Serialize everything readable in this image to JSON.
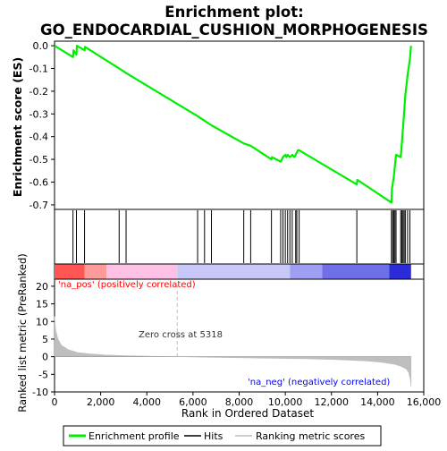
{
  "chart_data": {
    "type": "line",
    "title_line1": "Enrichment plot:",
    "title_line2": "GO_ENDOCARDIAL_CUSHION_MORPHOGENESIS",
    "es_panel": {
      "ylabel": "Enrichment score (ES)",
      "ylim": [
        -0.72,
        0.02
      ],
      "yticks": [
        "0.0",
        "-0.1",
        "-0.2",
        "-0.3",
        "-0.4",
        "-0.5",
        "-0.6",
        "-0.7"
      ],
      "ytick_values": [
        0.0,
        -0.1,
        -0.2,
        -0.3,
        -0.4,
        -0.5,
        -0.6,
        -0.7
      ],
      "series_name": "Enrichment profile",
      "x": [
        0,
        800,
        820,
        950,
        970,
        1300,
        1320,
        2800,
        3100,
        6200,
        6500,
        6800,
        8200,
        8500,
        9400,
        9420,
        9800,
        9850,
        9900,
        10000,
        10050,
        10100,
        10200,
        10300,
        10400,
        10450,
        10500,
        10550,
        10600,
        13100,
        13120,
        14600,
        14620,
        14700,
        14750,
        14800,
        15000,
        15050,
        15100,
        15150,
        15200,
        15300,
        15400,
        15450
      ],
      "y": [
        0.0,
        -0.05,
        -0.02,
        -0.04,
        0.0,
        -0.02,
        -0.005,
        -0.1,
        -0.12,
        -0.31,
        -0.33,
        -0.35,
        -0.43,
        -0.44,
        -0.5,
        -0.49,
        -0.51,
        -0.5,
        -0.49,
        -0.48,
        -0.49,
        -0.48,
        -0.49,
        -0.48,
        -0.49,
        -0.48,
        -0.47,
        -0.46,
        -0.46,
        -0.61,
        -0.59,
        -0.69,
        -0.63,
        -0.58,
        -0.53,
        -0.48,
        -0.49,
        -0.43,
        -0.36,
        -0.29,
        -0.22,
        -0.13,
        -0.06,
        0.0
      ]
    },
    "hits": [
      800,
      950,
      1300,
      2800,
      3100,
      6200,
      6500,
      6800,
      8200,
      8500,
      9400,
      9800,
      9900,
      10000,
      10100,
      10200,
      10300,
      10450,
      10500,
      10600,
      13100,
      14600,
      14650,
      14700,
      14750,
      14800,
      15000,
      15050,
      15100,
      15150,
      15200,
      15300,
      15400
    ],
    "rank_panel": {
      "ylabel": "Ranked list metric (PreRanked)",
      "ylim": [
        -10,
        22
      ],
      "yticks": [
        "20",
        "15",
        "10",
        "5",
        "0",
        "-5",
        "-10"
      ],
      "ytick_values": [
        20,
        15,
        10,
        5,
        0,
        -5,
        -10
      ],
      "zero_cross_label": "Zero cross at 5318",
      "zero_cross": 5318,
      "pos_label": "'na_pos' (positively correlated)",
      "neg_label": "'na_neg' (negatively correlated)",
      "series_name": "Ranking metric scores",
      "x": [
        0,
        50,
        150,
        300,
        600,
        1000,
        1500,
        2200,
        3000,
        4000,
        5318,
        7000,
        9000,
        11000,
        12500,
        13500,
        14200,
        14700,
        15000,
        15250,
        15350,
        15420,
        15450
      ],
      "y": [
        11.5,
        7.5,
        5,
        3.2,
        2,
        1.2,
        0.8,
        0.5,
        0.3,
        0.15,
        0,
        -0.2,
        -0.4,
        -0.6,
        -0.9,
        -1.2,
        -1.6,
        -2.1,
        -2.7,
        -3.5,
        -4.5,
        -6.5,
        -8.5
      ]
    },
    "xlabel": "Rank in Ordered Dataset",
    "xlim": [
      0,
      16000
    ],
    "xticks": [
      "0",
      "2,000",
      "4,000",
      "6,000",
      "8,000",
      "10,000",
      "12,000",
      "14,000",
      "16,000"
    ],
    "xtick_values": [
      0,
      2000,
      4000,
      6000,
      8000,
      10000,
      12000,
      14000,
      16000
    ],
    "n_ranked": 15450,
    "legend": [
      {
        "name": "Enrichment profile",
        "color": "#00ee00"
      },
      {
        "name": "Hits",
        "color": "#000000"
      },
      {
        "name": "Ranking metric scores",
        "color": "#bebebe"
      }
    ],
    "colors": {
      "es_line": "#00ee00",
      "hits": "#000000",
      "metric_fill": "#bebebe",
      "pos_text": "#ff0000",
      "neg_text": "#0000ff",
      "zero_line": "#c0c0c0"
    },
    "heatmap_bands": [
      {
        "from": 0,
        "to": 1300,
        "color": "#ff5555"
      },
      {
        "from": 1300,
        "to": 2250,
        "color": "#ff9a9a"
      },
      {
        "from": 2250,
        "to": 5318,
        "color": "#ffc0e6"
      },
      {
        "from": 5318,
        "to": 10200,
        "color": "#c8c8f8"
      },
      {
        "from": 10200,
        "to": 11600,
        "color": "#9e9ef2"
      },
      {
        "from": 11600,
        "to": 14500,
        "color": "#6f6fe8"
      },
      {
        "from": 14500,
        "to": 15450,
        "color": "#2b2bd9"
      }
    ]
  }
}
